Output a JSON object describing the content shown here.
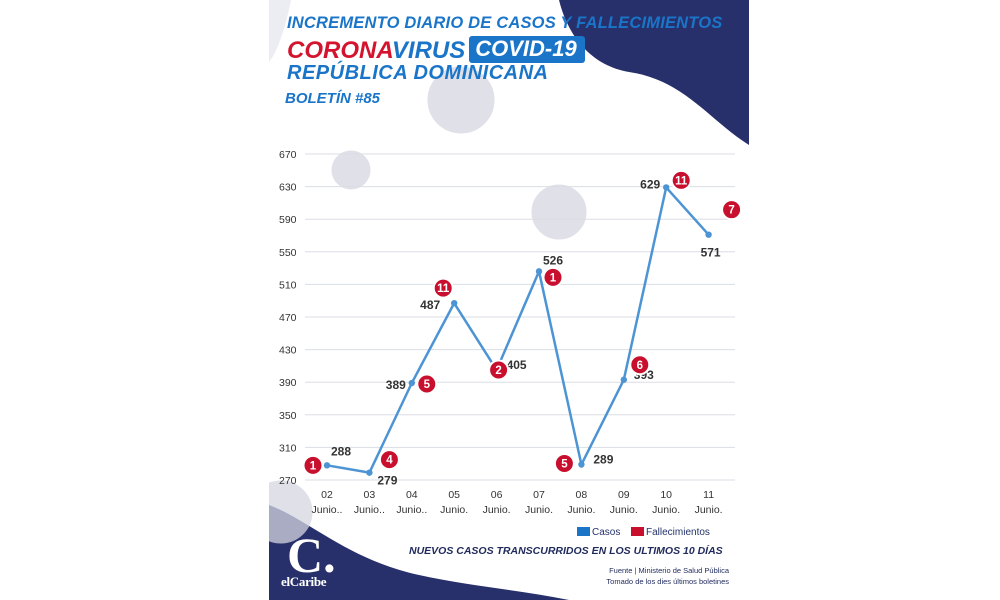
{
  "header": {
    "title": "INCREMENTO DIARIO DE CASOS Y FALLECIMIENTOS",
    "corona": "CORONA",
    "virus": "VIRUS",
    "covid": "COVID-19",
    "country": "REPÚBLICA DOMINICANA",
    "bulletin": "BOLETÍN #85"
  },
  "legend": {
    "cases": "Casos",
    "deaths": "Fallecimientos"
  },
  "subtitle": "NUEVOS CASOS TRANSCURRIDOS EN LOS ULTIMOS 10 DÍAS",
  "source": {
    "line1": "Fuente | Ministerio de Salud Pública",
    "line2": "Tomado de  los dies últimos boletines"
  },
  "logo": {
    "letter": "C.",
    "name": "elCaribe"
  },
  "colors": {
    "cases": "#4d94d4",
    "deaths": "#c8102e",
    "navy": "#27306b",
    "title_blue": "#1a75c9",
    "corona_red": "#d4142e"
  },
  "chart_data": {
    "type": "line",
    "categories": [
      "02 Junio..",
      "03 Junio..",
      "04 Junio..",
      "05 Junio.",
      "06 Junio.",
      "07 Junio.",
      "08 Junio.",
      "09 Junio.",
      "10 Junio.",
      "11 Junio."
    ],
    "x_day": [
      "02",
      "03",
      "04",
      "05",
      "06",
      "07",
      "08",
      "09",
      "10",
      "11"
    ],
    "x_month": [
      "Junio..",
      "Junio..",
      "Junio..",
      "Junio.",
      "Junio.",
      "Junio.",
      "Junio.",
      "Junio.",
      "Junio.",
      "Junio."
    ],
    "series": [
      {
        "name": "Casos",
        "values": [
          288,
          279,
          389,
          487,
          405,
          526,
          289,
          393,
          629,
          571
        ]
      },
      {
        "name": "Fallecimientos",
        "values": [
          1,
          4,
          5,
          11,
          2,
          1,
          5,
          6,
          11,
          7
        ]
      }
    ],
    "yticks": [
      270,
      310,
      350,
      390,
      430,
      470,
      510,
      550,
      590,
      630,
      670
    ],
    "ylim": [
      270,
      670
    ],
    "grid": true,
    "legend": "bottom-right"
  }
}
